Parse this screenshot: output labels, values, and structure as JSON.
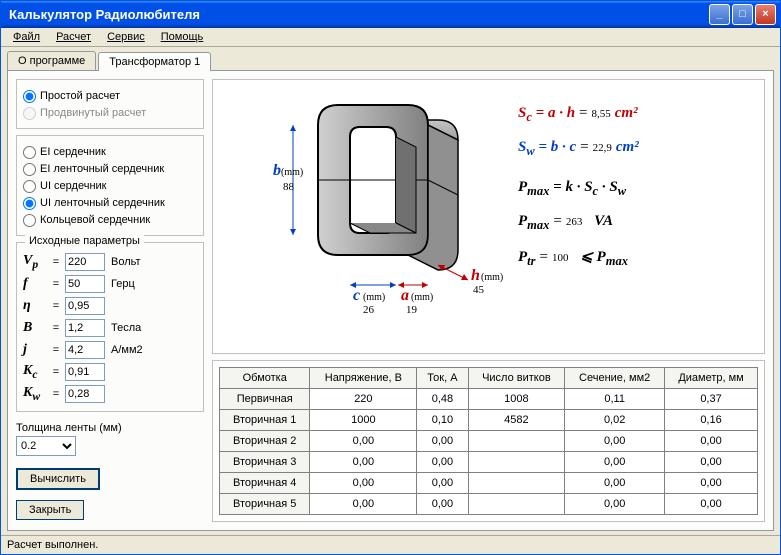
{
  "window": {
    "title": "Калькулятор Радиолюбителя"
  },
  "menu": {
    "file": "Файл",
    "calc": "Расчет",
    "service": "Сервис",
    "help": "Помощь"
  },
  "tabs": {
    "about": "О программе",
    "trans1": "Трансформатор 1"
  },
  "calcMode": {
    "simple": "Простой расчет",
    "advanced": "Продвинутый расчет"
  },
  "coreTypes": {
    "ei": "EI сердечник",
    "eiTape": "EI ленточный сердечник",
    "ui": "UI сердечник",
    "uiTape": "UI ленточный сердечник",
    "ring": "Кольцевой сердечник"
  },
  "paramsTitle": "Исходные параметры",
  "params": {
    "Vp": {
      "label": "Vₚ",
      "value": "220",
      "unit": "Вольт"
    },
    "f": {
      "label": "f",
      "value": "50",
      "unit": "Герц"
    },
    "eta": {
      "label": "η",
      "value": "0,95",
      "unit": ""
    },
    "B": {
      "label": "B",
      "value": "1,2",
      "unit": "Тесла"
    },
    "j": {
      "label": "j",
      "value": "4,2",
      "unit": "А/мм2"
    },
    "Kc": {
      "label": "Kc",
      "value": "0,91",
      "unit": ""
    },
    "Kw": {
      "label": "Kw",
      "value": "0,28",
      "unit": ""
    }
  },
  "tapeThickness": {
    "label": "Толщина ленты (мм)",
    "value": "0.2"
  },
  "buttons": {
    "calc": "Вычислить",
    "close": "Закрыть"
  },
  "dims": {
    "b": {
      "label": "b",
      "unit": "(mm)",
      "value": "88",
      "color": "#0040c0"
    },
    "c": {
      "label": "c",
      "unit": "(mm)",
      "value": "26",
      "color": "#0040c0"
    },
    "a": {
      "label": "a",
      "unit": "(mm)",
      "value": "19",
      "color": "#c00000"
    },
    "h": {
      "label": "h",
      "unit": "(mm)",
      "value": "45",
      "color": "#c00000"
    }
  },
  "formulas": {
    "sc": {
      "lhs": "Sₒ = a · h",
      "val": "8,55",
      "unit": "cm²",
      "color": "red"
    },
    "sw": {
      "lhs": "Sᵥ = b · c",
      "val": "22,9",
      "unit": "cm²",
      "color": "blue"
    },
    "pmax1": {
      "lhs": "Pₘₐₓ = k · Sₒ · Sᵥ"
    },
    "pmax2": {
      "lhs": "Pₘₐₓ =",
      "val": "263",
      "unit": "VA"
    },
    "ptr": {
      "lhs": "Pₜᵣ =",
      "val": "100",
      "rhs": "⩽ Pₘₐₓ"
    }
  },
  "table": {
    "headers": [
      "Обмотка",
      "Напряжение, В",
      "Ток, А",
      "Число витков",
      "Сечение, мм2",
      "Диаметр, мм"
    ],
    "rows": [
      [
        "Первичная",
        "220",
        "0,48",
        "1008",
        "0,11",
        "0,37"
      ],
      [
        "Вторичная 1",
        "1000",
        "0,10",
        "4582",
        "0,02",
        "0,16"
      ],
      [
        "Вторичная 2",
        "0,00",
        "0,00",
        "",
        "0,00",
        "0,00"
      ],
      [
        "Вторичная 3",
        "0,00",
        "0,00",
        "",
        "0,00",
        "0,00"
      ],
      [
        "Вторичная 4",
        "0,00",
        "0,00",
        "",
        "0,00",
        "0,00"
      ],
      [
        "Вторичная 5",
        "0,00",
        "0,00",
        "",
        "0,00",
        "0,00"
      ]
    ]
  },
  "status": "Расчет выполнен."
}
